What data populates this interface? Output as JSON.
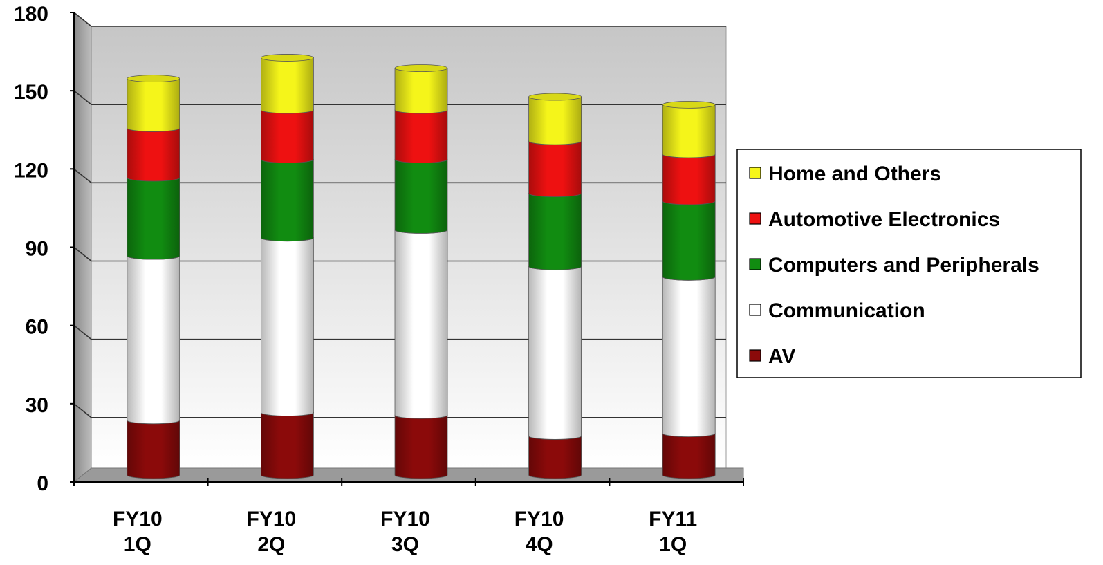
{
  "chart_data": {
    "type": "bar",
    "stacked": true,
    "three_d": true,
    "categories": [
      [
        "FY10",
        "1Q"
      ],
      [
        "FY10",
        "2Q"
      ],
      [
        "FY10",
        "3Q"
      ],
      [
        "FY10",
        "4Q"
      ],
      [
        "FY11",
        "1Q"
      ]
    ],
    "series": [
      {
        "name": "AV",
        "color": "#8b0a0a",
        "values": [
          21,
          24,
          23,
          15,
          16
        ]
      },
      {
        "name": "Communication",
        "color": "#ffffff",
        "values": [
          63,
          67,
          71,
          65,
          60
        ]
      },
      {
        "name": "Computers and Peripherals",
        "color": "#118c11",
        "values": [
          30,
          30,
          27,
          28,
          29
        ]
      },
      {
        "name": "Automotive Electronics",
        "color": "#ee1111",
        "values": [
          19,
          19,
          19,
          20,
          18
        ]
      },
      {
        "name": "Home and Others",
        "color": "#f5f51a",
        "values": [
          19,
          20,
          16,
          17,
          19
        ]
      }
    ],
    "y_ticks": [
      "0",
      "30",
      "60",
      "90",
      "120",
      "150",
      "180"
    ],
    "ylim": [
      0,
      180
    ],
    "grid": true,
    "legend_position": "right",
    "legend_order": [
      "Home and Others",
      "Automotive Electronics",
      "Computers and Peripherals",
      "Communication",
      "AV"
    ],
    "title": "",
    "xlabel": "",
    "ylabel": ""
  }
}
